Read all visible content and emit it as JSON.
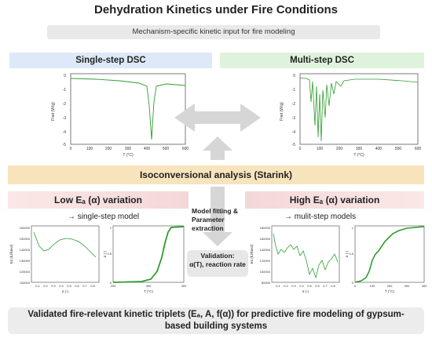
{
  "title": "Dehydration Kinetics under Fire Conditions",
  "subtitle": "Mechanism-specific kinetic input for fire modeling",
  "headers": {
    "left": "Single-step DSC",
    "right": "Multi-step DSC"
  },
  "isoconversional": "Isoconversional analysis (Starink)",
  "variation": {
    "low": "Low Eₐ (α) variation",
    "high": "High Eₐ (α) variation"
  },
  "models": {
    "single": "→ single-step model",
    "multi": "→ mulit-step models"
  },
  "middle": {
    "line1": "Model fitting &",
    "line2": "Parameter extraction"
  },
  "validation": {
    "line1": "Validation:",
    "line2": "α(T), reaction rate"
  },
  "bottom": {
    "line1": "Validated fire-relevant kinetic triplets (Eₐ, A, f(α)) for predictive fire modeling of gypsum-",
    "line2": "based building systems"
  },
  "plots": {
    "dsc_ylabel": "Fnet (W/g)",
    "dsc_xlabel": "T (°C)",
    "ea_ylabel": "Eα (kJ/kmol)",
    "ea_xlabel": "α (-)",
    "alpha_ylabel": "α (-)",
    "alpha_xlabel": "T (°C)"
  },
  "colors": {
    "curve": "#2e9e2e",
    "arrow": "#d6d6d6"
  }
}
